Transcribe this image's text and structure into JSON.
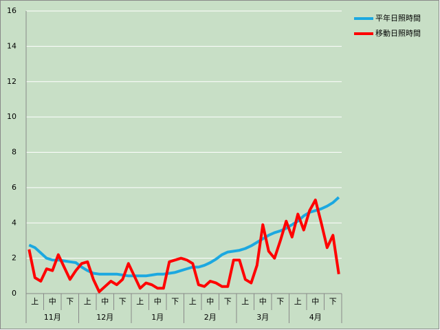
{
  "chart_data": {
    "type": "line",
    "categories": [
      null,
      "上",
      null,
      null,
      "中",
      null,
      null,
      "下",
      null,
      null,
      "上",
      null,
      null,
      "中",
      null,
      null,
      "下",
      null,
      null,
      "上",
      null,
      null,
      "中",
      null,
      null,
      "下",
      null,
      null,
      "上",
      null,
      null,
      "中",
      null,
      null,
      "下",
      null,
      null,
      "上",
      null,
      null,
      "中",
      null,
      null,
      "下",
      null,
      null,
      "上",
      null,
      null,
      "中",
      null,
      null,
      "下",
      null
    ],
    "groups": [
      "11月",
      "12月",
      "1月",
      "2月",
      "3月",
      "4月"
    ],
    "series": [
      {
        "name": "平年日照時間",
        "color": "#1ca8e0",
        "values": [
          2.75,
          2.6,
          2.3,
          2.0,
          1.9,
          1.9,
          1.85,
          1.8,
          1.75,
          1.5,
          1.3,
          1.15,
          1.1,
          1.1,
          1.1,
          1.1,
          1.05,
          1.0,
          1.0,
          1.0,
          1.0,
          1.05,
          1.1,
          1.1,
          1.15,
          1.2,
          1.3,
          1.4,
          1.5,
          1.5,
          1.6,
          1.75,
          1.95,
          2.2,
          2.35,
          2.4,
          2.45,
          2.55,
          2.7,
          2.9,
          3.1,
          3.3,
          3.45,
          3.55,
          3.7,
          3.9,
          4.1,
          4.4,
          4.6,
          4.7,
          4.8,
          4.95,
          5.15,
          5.45
        ]
      },
      {
        "name": "移動日照時間",
        "color": "#ff0000",
        "values": [
          2.5,
          0.9,
          0.7,
          1.4,
          1.3,
          2.2,
          1.5,
          0.8,
          1.3,
          1.7,
          1.8,
          0.8,
          0.1,
          0.4,
          0.7,
          0.5,
          0.8,
          1.7,
          1.0,
          0.3,
          0.6,
          0.5,
          0.3,
          0.3,
          1.8,
          1.9,
          2.0,
          1.9,
          1.7,
          0.5,
          0.4,
          0.7,
          0.6,
          0.4,
          0.4,
          1.9,
          1.9,
          0.8,
          0.6,
          1.6,
          3.9,
          2.4,
          2.0,
          3.0,
          4.1,
          3.2,
          4.5,
          3.6,
          4.7,
          5.3,
          4.0,
          2.6,
          3.3,
          1.1
        ]
      }
    ],
    "ylim": [
      0,
      16
    ],
    "yticks": [
      0,
      2,
      4,
      6,
      8,
      10,
      12,
      14,
      16
    ],
    "grid": true,
    "legend": "top-right"
  }
}
